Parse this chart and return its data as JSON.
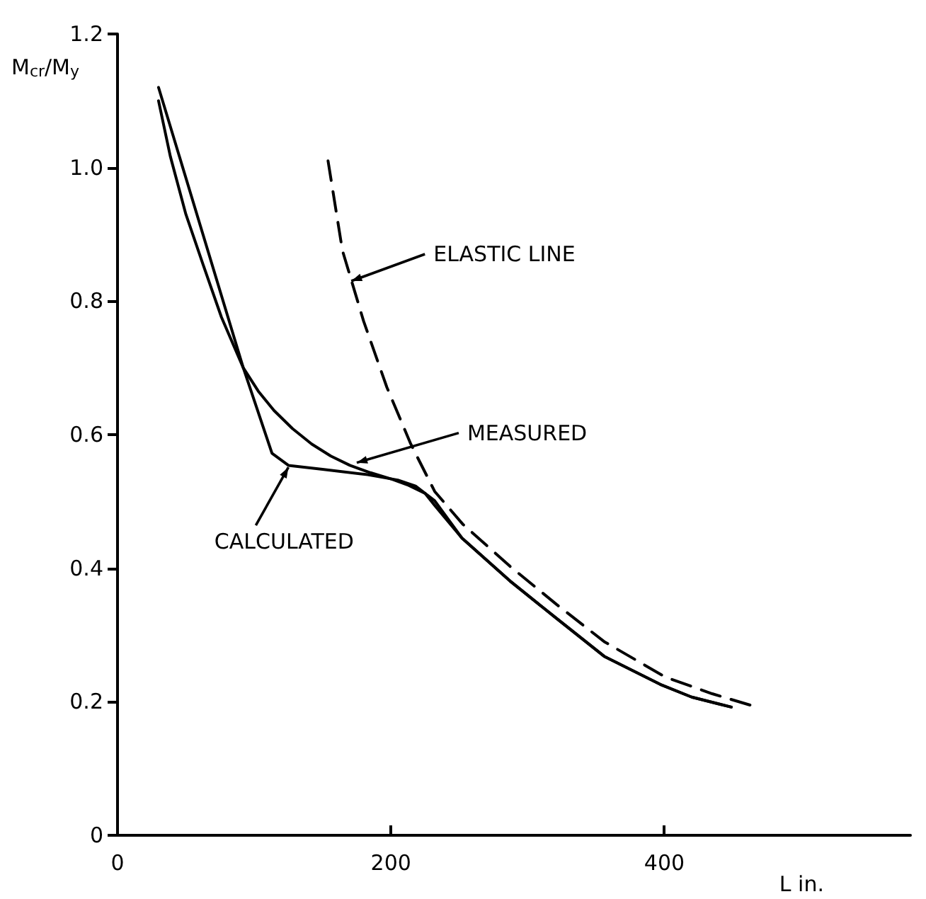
{
  "chart_data": {
    "type": "line",
    "xlabel": "L in.",
    "ylabel": "M$_{cr}$/M$_{y}$",
    "xlim": [
      0,
      580
    ],
    "ylim": [
      0,
      1.2
    ],
    "xticks": [
      0,
      200,
      400
    ],
    "yticks": [
      0,
      0.2,
      0.4,
      0.6,
      0.8,
      {
        "value": 1,
        "label": "1.0"
      },
      1.2
    ],
    "grid": false,
    "marker": "none",
    "series": [
      {
        "color": "#000000",
        "line_style": "solid",
        "x": [
          30,
          38.6,
          50,
          62.7,
          76,
          92,
          103,
          114.5,
          128,
          142,
          156,
          170,
          185,
          201,
          213,
          225,
          232,
          252,
          287,
          321,
          356,
          397,
          420,
          449
        ],
        "values": [
          1.1,
          1.017,
          0.93,
          0.854,
          0.776,
          0.7,
          0.665,
          0.636,
          0.609,
          0.586,
          0.568,
          0.554,
          0.543,
          0.533,
          0.524,
          0.512,
          0.494,
          0.445,
          0.381,
          0.325,
          0.268,
          0.226,
          0.207,
          0.192
        ]
      },
      {
        "color": "#000000",
        "line_style": "solid",
        "x": [
          30,
          92,
          113,
          125,
          150,
          183,
          205,
          218,
          232,
          252,
          287,
          321,
          356,
          397,
          420,
          449
        ],
        "values": [
          1.12,
          0.7,
          0.572,
          0.554,
          0.548,
          0.54,
          0.532,
          0.523,
          0.501,
          0.445,
          0.381,
          0.325,
          0.268,
          0.226,
          0.207,
          0.192
        ]
      },
      {
        "color": "#000000",
        "line_style": "dashed",
        "x": [
          154,
          164.5,
          180,
          197,
          214.5,
          232,
          252.5,
          287,
          321,
          356,
          400.7,
          435,
          466
        ],
        "values": [
          1.01,
          0.876,
          0.77,
          0.671,
          0.586,
          0.515,
          0.466,
          0.403,
          0.346,
          0.29,
          0.237,
          0.212,
          0.193
        ]
      }
    ],
    "annotations": [
      {
        "text": "ELASTIC LINE",
        "x": 171,
        "y": 0.83
      },
      {
        "text": "MEASURED",
        "x": 175,
        "y": 0.558
      },
      {
        "text": "CALCULATED",
        "x": 125,
        "y": 0.551
      }
    ]
  }
}
